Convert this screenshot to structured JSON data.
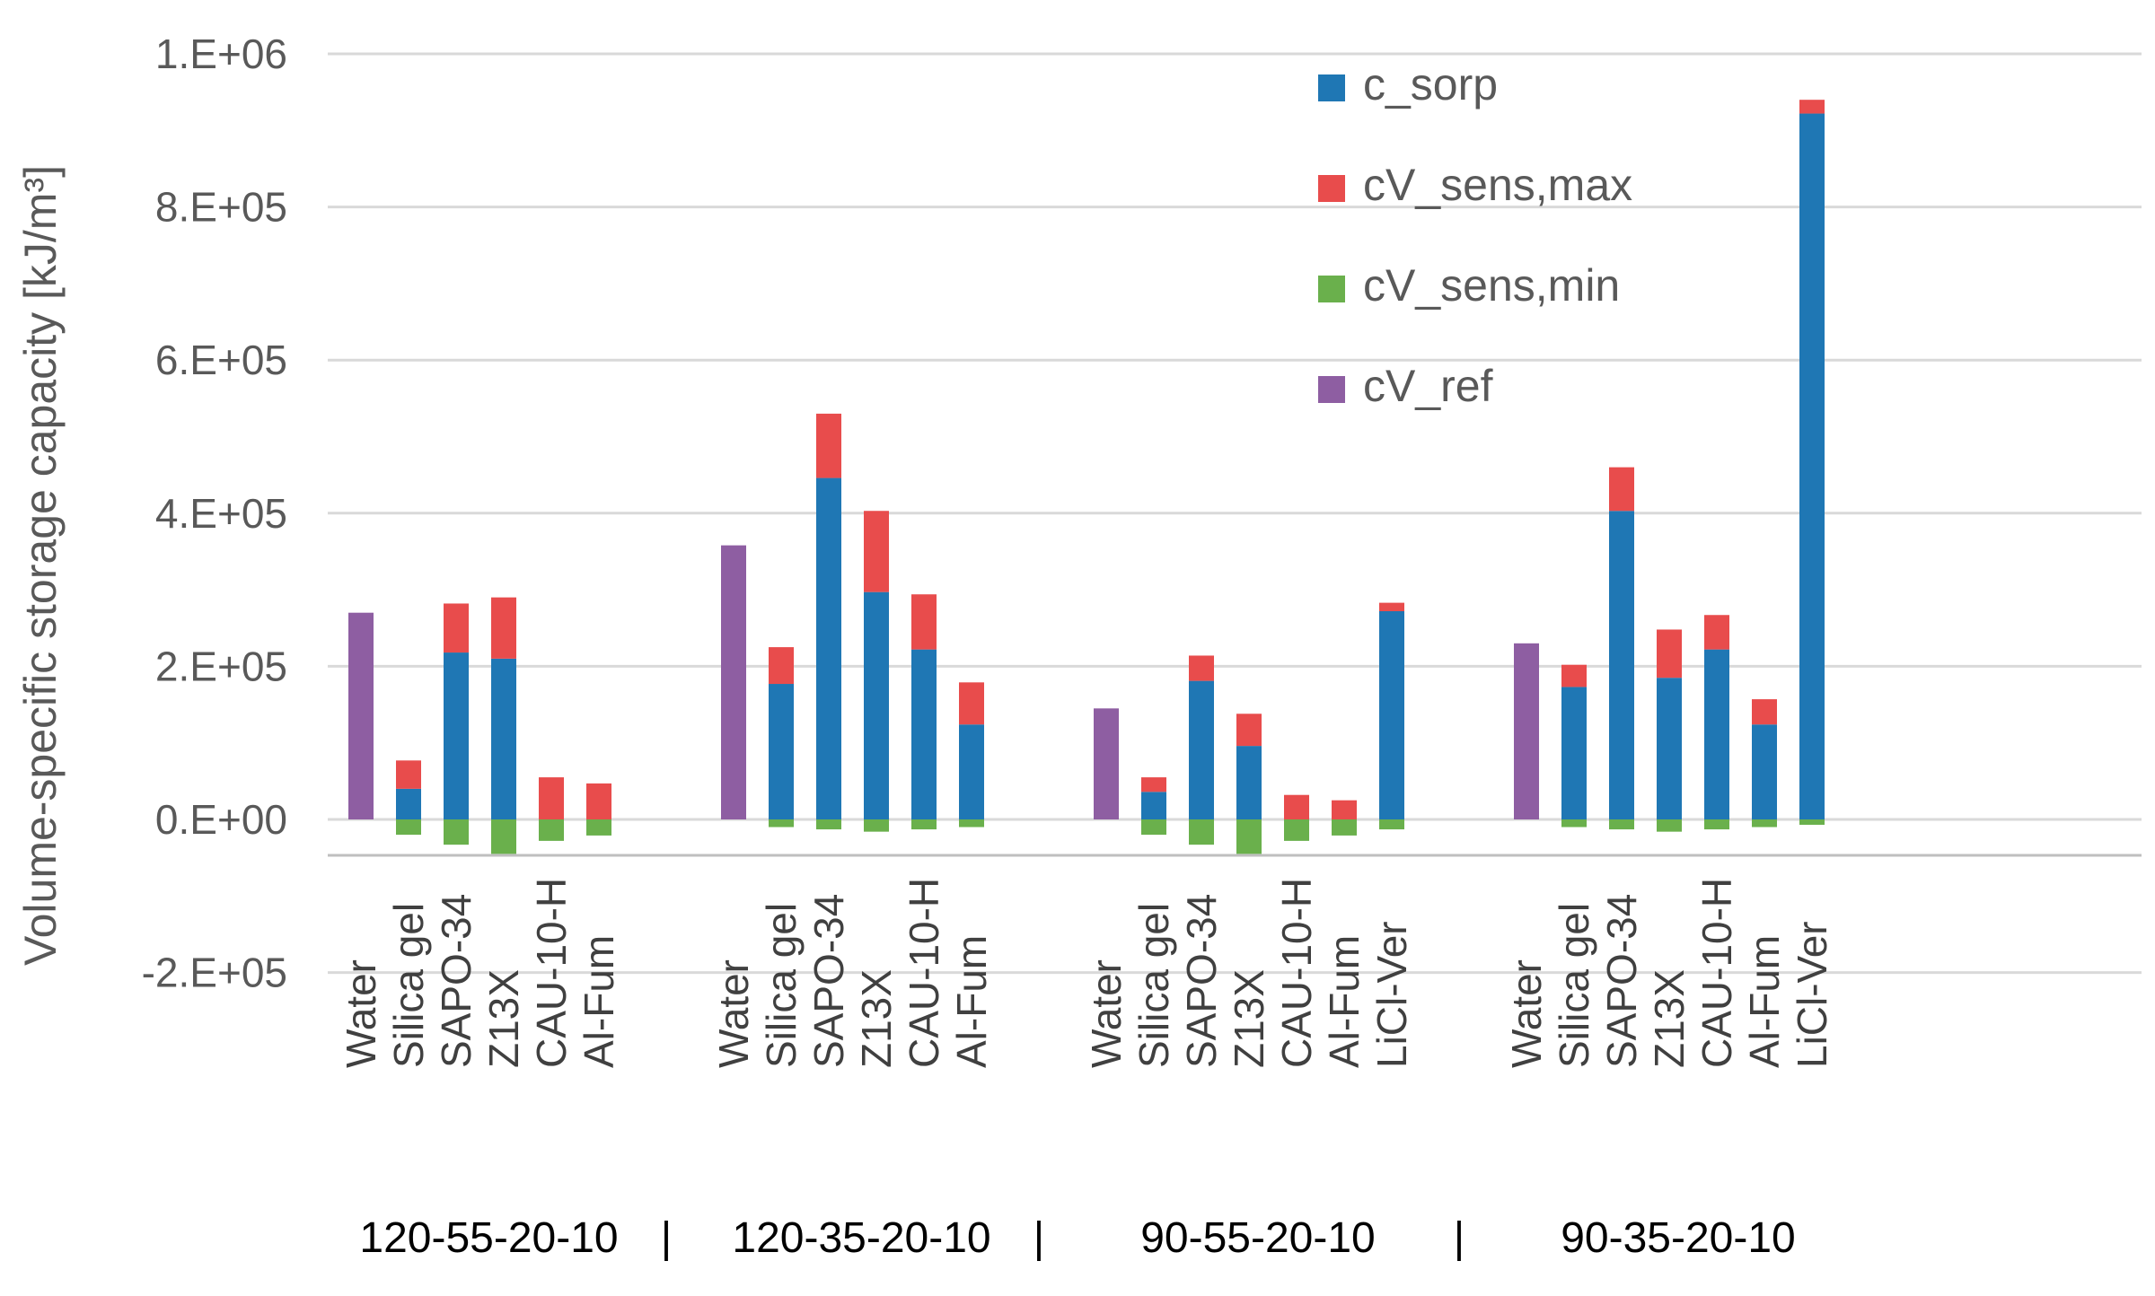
{
  "chart_data": {
    "type": "bar",
    "stacked": true,
    "ylabel": "Volume-specific storage capacity [kJ/m³]",
    "ylim": [
      -200000,
      1000000
    ],
    "yticks": [
      1000000,
      800000,
      600000,
      400000,
      200000,
      0,
      -200000
    ],
    "ytick_labels": [
      "1.E+06",
      "8.E+05",
      "6.E+05",
      "4.E+05",
      "2.E+05",
      "0.E+00",
      "-2.E+05"
    ],
    "legend": [
      "c_sorp",
      "cV_sens,max",
      "cV_sens,min",
      "cV_ref"
    ],
    "colors": {
      "c_sorp": "#1f77b4",
      "cV_sens,max": "#e84c4c",
      "cV_sens,min": "#6ab04c",
      "cV_ref": "#8e5ea2",
      "grid": "#d9d9d9",
      "axis": "#bfbfbf"
    },
    "groups": [
      {
        "name": "120-55-20-10",
        "separator": "|",
        "categories": [
          {
            "label": "Water",
            "ref": 270000
          },
          {
            "label": "Silica gel",
            "sorp": 40000,
            "sens_max": 37000,
            "sens_min": -20000
          },
          {
            "label": "SAPO-34",
            "sorp": 218000,
            "sens_max": 64000,
            "sens_min": -33000
          },
          {
            "label": "Z13X",
            "sorp": 210000,
            "sens_max": 80000,
            "sens_min": -45000
          },
          {
            "label": "CAU-10-H",
            "sorp": 0,
            "sens_max": 55000,
            "sens_min": -28000
          },
          {
            "label": "Al-Fum",
            "sorp": 0,
            "sens_max": 47000,
            "sens_min": -21000
          }
        ]
      },
      {
        "name": "120-35-20-10",
        "separator": "|",
        "categories": [
          {
            "label": "Water",
            "ref": 358000
          },
          {
            "label": "Silica gel",
            "sorp": 177000,
            "sens_max": 48000,
            "sens_min": -10000
          },
          {
            "label": "SAPO-34",
            "sorp": 446000,
            "sens_max": 84000,
            "sens_min": -13000
          },
          {
            "label": "Z13X",
            "sorp": 297000,
            "sens_max": 106000,
            "sens_min": -16000
          },
          {
            "label": "CAU-10-H",
            "sorp": 222000,
            "sens_max": 72000,
            "sens_min": -13000
          },
          {
            "label": "Al-Fum",
            "sorp": 124000,
            "sens_max": 55000,
            "sens_min": -10000
          }
        ]
      },
      {
        "name": "90-55-20-10",
        "separator": "|",
        "categories": [
          {
            "label": "Water",
            "ref": 145000
          },
          {
            "label": "Silica gel",
            "sorp": 36000,
            "sens_max": 19000,
            "sens_min": -20000
          },
          {
            "label": "SAPO-34",
            "sorp": 181000,
            "sens_max": 33000,
            "sens_min": -33000
          },
          {
            "label": "Z13X",
            "sorp": 96000,
            "sens_max": 42000,
            "sens_min": -45000
          },
          {
            "label": "CAU-10-H",
            "sorp": 0,
            "sens_max": 32000,
            "sens_min": -28000
          },
          {
            "label": "Al-Fum",
            "sorp": 0,
            "sens_max": 25000,
            "sens_min": -21000
          },
          {
            "label": "LiCl-Ver",
            "sorp": 272000,
            "sens_max": 11000,
            "sens_min": -13000
          }
        ]
      },
      {
        "name": "90-35-20-10",
        "separator": "",
        "categories": [
          {
            "label": "Water",
            "ref": 230000
          },
          {
            "label": "Silica gel",
            "sorp": 173000,
            "sens_max": 29000,
            "sens_min": -10000
          },
          {
            "label": "SAPO-34",
            "sorp": 403000,
            "sens_max": 57000,
            "sens_min": -13000
          },
          {
            "label": "Z13X",
            "sorp": 185000,
            "sens_max": 63000,
            "sens_min": -16000
          },
          {
            "label": "CAU-10-H",
            "sorp": 222000,
            "sens_max": 45000,
            "sens_min": -13000
          },
          {
            "label": "Al-Fum",
            "sorp": 124000,
            "sens_max": 33000,
            "sens_min": -10000
          },
          {
            "label": "LiCl-Ver",
            "sorp": 922000,
            "sens_max": 18000,
            "sens_min": -7000
          }
        ]
      }
    ]
  }
}
